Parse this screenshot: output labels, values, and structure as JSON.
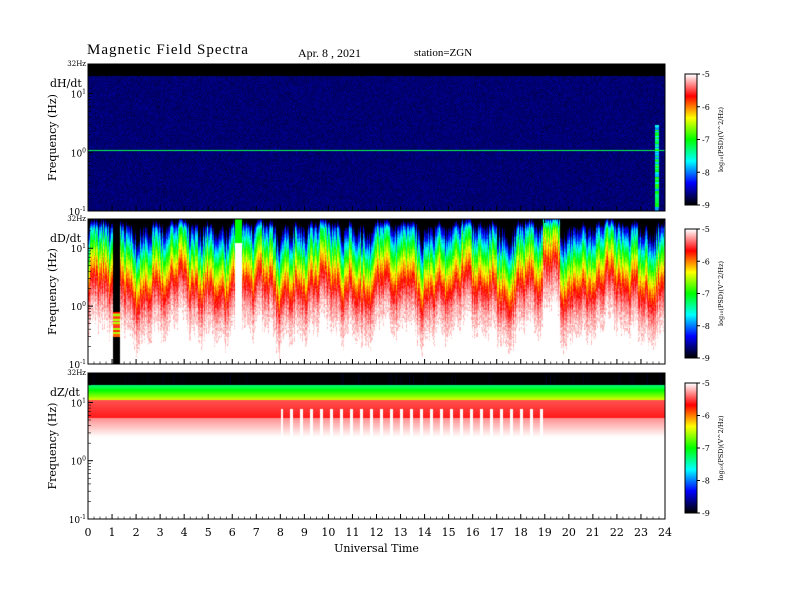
{
  "header": {
    "title": "Magnetic  Field  Spectra",
    "date": "Apr. 8  , 2021",
    "station": "station=ZGN"
  },
  "chart_data": [
    {
      "type": "heatmap",
      "component": "dH/dt",
      "ylabel": "Frequency  (Hz)",
      "y_scale": "log",
      "ylim": [
        0.1,
        32
      ],
      "y_ticks": [
        {
          "value": 32,
          "label": "32Hz"
        },
        {
          "value": 10,
          "label": "10",
          "sup": "1"
        },
        {
          "value": 1,
          "label": "10",
          "sup": "0"
        },
        {
          "value": 0.1,
          "label": "10",
          "sup": "-1"
        }
      ],
      "x_range": [
        0,
        24
      ],
      "pattern": "low power (blue/black) throughout; persistent line near 1.1 Hz; scattered green-red points near 0.1 Hz; bright burst near 23.7 h"
    },
    {
      "type": "heatmap",
      "component": "dD/dt",
      "ylabel": "Frequency  (Hz)",
      "y_scale": "log",
      "ylim": [
        0.1,
        32
      ],
      "y_ticks": [
        {
          "value": 32,
          "label": "32Hz"
        },
        {
          "value": 10,
          "label": "10",
          "sup": "1"
        },
        {
          "value": 1,
          "label": "10",
          "sup": "0"
        },
        {
          "value": 0.1,
          "label": "10",
          "sup": "-1"
        }
      ],
      "x_range": [
        0,
        24
      ],
      "pattern": "high power from ~0.5 to 32 Hz with variable lower cutoff; data gap ~1-1.3 h and ~6.1-6.4 h"
    },
    {
      "type": "heatmap",
      "component": "dZ/dt",
      "ylabel": "Frequency  (Hz)",
      "y_scale": "log",
      "ylim": [
        0.1,
        32
      ],
      "y_ticks": [
        {
          "value": 32,
          "label": "32Hz"
        },
        {
          "value": 10,
          "label": "10",
          "sup": "1"
        },
        {
          "value": 1,
          "label": "10",
          "sup": "0"
        },
        {
          "value": 0.1,
          "label": "10",
          "sup": "-1"
        }
      ],
      "x_range": [
        0,
        24
      ],
      "pattern": "dark band above ~20 Hz, green-yellow band near 10-15 Hz, red 3-8 Hz fading to white below 1 Hz; periodic vertical stripes"
    }
  ],
  "x_axis": {
    "label": "Universal Time",
    "ticks": [
      "0",
      "1",
      "2",
      "3",
      "4",
      "5",
      "6",
      "7",
      "8",
      "9",
      "10",
      "11",
      "12",
      "13",
      "14",
      "15",
      "16",
      "17",
      "18",
      "19",
      "20",
      "21",
      "22",
      "23",
      "24"
    ]
  },
  "colorbar": {
    "label": "log₁₀(PSD)(V^2/Hz)",
    "ticks": [
      "-5",
      "-6",
      "-7",
      "-8",
      "-9"
    ],
    "range": [
      -9,
      -5
    ],
    "colors": [
      "#000000",
      "#0000ff",
      "#00ffff",
      "#00ff00",
      "#ffff00",
      "#ff0000",
      "#ffffff"
    ]
  }
}
